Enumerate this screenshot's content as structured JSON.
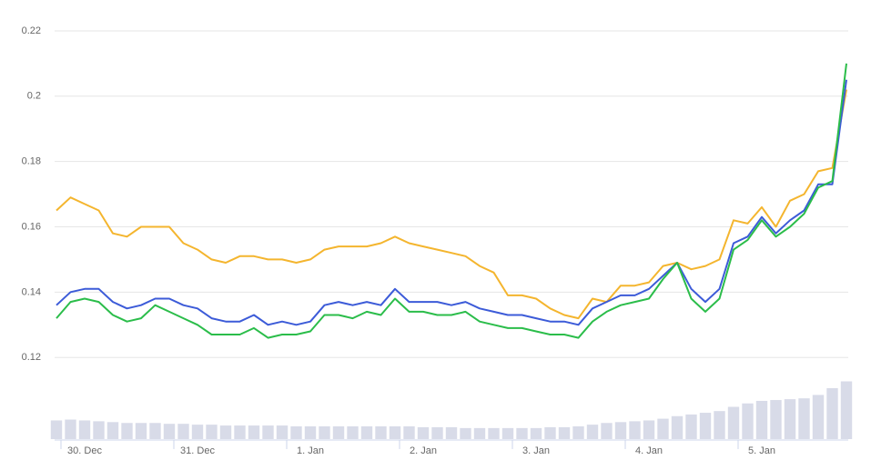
{
  "chart_data": {
    "type": "line",
    "categories": [
      null,
      null,
      "30. Dec",
      null,
      null,
      null,
      null,
      null,
      null,
      null,
      "31. Dec",
      null,
      null,
      null,
      null,
      null,
      null,
      null,
      "1. Jan",
      null,
      null,
      null,
      null,
      null,
      null,
      null,
      "2. Jan",
      null,
      null,
      null,
      null,
      null,
      null,
      null,
      "3. Jan",
      null,
      null,
      null,
      null,
      null,
      null,
      null,
      "4. Jan",
      null,
      null,
      null,
      null,
      null,
      null,
      null,
      "5. Jan",
      null,
      null,
      null,
      null,
      null,
      null
    ],
    "ylim": [
      0.095,
      0.225
    ],
    "yticks": [
      0.12,
      0.14,
      0.16,
      0.18,
      0.2,
      0.22
    ],
    "y2lim": [
      0,
      500
    ],
    "grid": true,
    "series": [
      {
        "type": "bar",
        "axis": "y2",
        "color": "#d8dbe8",
        "values": [
          22,
          23,
          22,
          21,
          20,
          19,
          19,
          19,
          18,
          18,
          17,
          17,
          16,
          16,
          16,
          16,
          16,
          15,
          15,
          15,
          15,
          15,
          15,
          15,
          15,
          15,
          14,
          14,
          14,
          13,
          13,
          13,
          13,
          13,
          13,
          14,
          14,
          15,
          17,
          19,
          20,
          21,
          22,
          24,
          27,
          29,
          31,
          33,
          38,
          42,
          45,
          46,
          47,
          48,
          52,
          60,
          68
        ]
      },
      {
        "type": "line",
        "color": "#f4b52e",
        "values": [
          0.165,
          0.169,
          0.167,
          0.165,
          0.158,
          0.157,
          0.16,
          0.16,
          0.16,
          0.155,
          0.153,
          0.15,
          0.149,
          0.151,
          0.151,
          0.15,
          0.15,
          0.149,
          0.15,
          0.153,
          0.154,
          0.154,
          0.154,
          0.155,
          0.157,
          0.155,
          0.154,
          0.153,
          0.152,
          0.151,
          0.148,
          0.146,
          0.139,
          0.139,
          0.138,
          0.135,
          0.133,
          0.132,
          0.138,
          0.137,
          0.142,
          0.142,
          0.143,
          0.148,
          0.149,
          0.147,
          0.148,
          0.15,
          0.162,
          0.161,
          0.166,
          0.16,
          0.168,
          0.17,
          0.177,
          0.178,
          0.202
        ]
      },
      {
        "type": "line",
        "color": "#3c5bd8",
        "values": [
          0.136,
          0.14,
          0.141,
          0.141,
          0.137,
          0.135,
          0.136,
          0.138,
          0.138,
          0.136,
          0.135,
          0.132,
          0.131,
          0.131,
          0.133,
          0.13,
          0.131,
          0.13,
          0.131,
          0.136,
          0.137,
          0.136,
          0.137,
          0.136,
          0.141,
          0.137,
          0.137,
          0.137,
          0.136,
          0.137,
          0.135,
          0.134,
          0.133,
          0.133,
          0.132,
          0.131,
          0.131,
          0.13,
          0.135,
          0.137,
          0.139,
          0.139,
          0.141,
          0.145,
          0.149,
          0.141,
          0.137,
          0.141,
          0.155,
          0.157,
          0.163,
          0.158,
          0.162,
          0.165,
          0.173,
          0.173,
          0.205
        ]
      },
      {
        "type": "line",
        "color": "#2bbd4a",
        "values": [
          0.132,
          0.137,
          0.138,
          0.137,
          0.133,
          0.131,
          0.132,
          0.136,
          0.134,
          0.132,
          0.13,
          0.127,
          0.127,
          0.127,
          0.129,
          0.126,
          0.127,
          0.127,
          0.128,
          0.133,
          0.133,
          0.132,
          0.134,
          0.133,
          0.138,
          0.134,
          0.134,
          0.133,
          0.133,
          0.134,
          0.131,
          0.13,
          0.129,
          0.129,
          0.128,
          0.127,
          0.127,
          0.126,
          0.131,
          0.134,
          0.136,
          0.137,
          0.138,
          0.144,
          0.149,
          0.138,
          0.134,
          0.138,
          0.153,
          0.156,
          0.162,
          0.157,
          0.16,
          0.164,
          0.172,
          0.174,
          0.21
        ]
      }
    ]
  }
}
